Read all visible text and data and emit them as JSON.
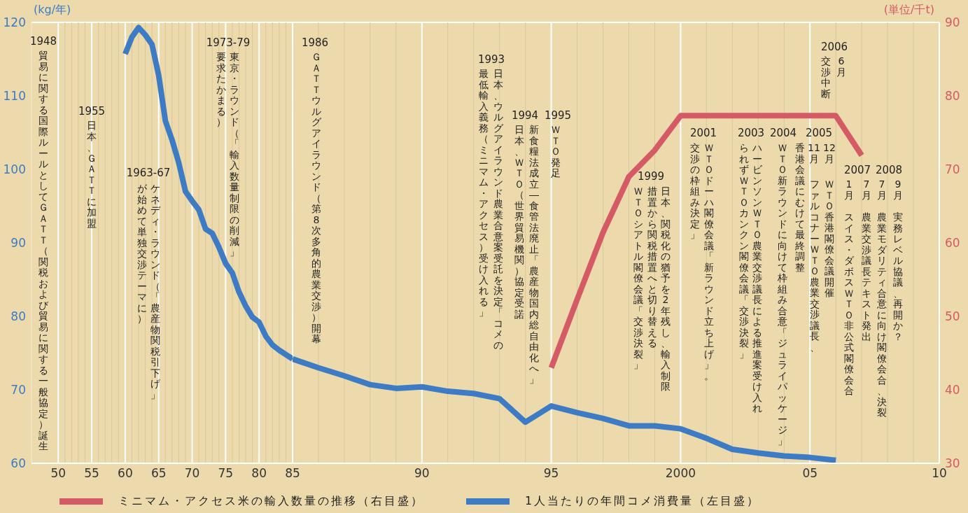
{
  "chart_data": [
    {
      "type": "line",
      "ylabel": "(kg/年)",
      "xlim": [
        1946,
        1985
      ],
      "xticks": [
        {
          "value": 1950,
          "label": "50"
        },
        {
          "value": 1951,
          "label": null
        },
        {
          "value": 1952,
          "label": null
        },
        {
          "value": 1953,
          "label": null
        },
        {
          "value": 1954,
          "label": null
        },
        {
          "value": 1955,
          "label": "55"
        },
        {
          "value": 1956,
          "label": null
        },
        {
          "value": 1957,
          "label": null
        },
        {
          "value": 1958,
          "label": null
        },
        {
          "value": 1959,
          "label": null
        },
        {
          "value": 1960,
          "label": "60"
        },
        {
          "value": 1961,
          "label": null
        },
        {
          "value": 1962,
          "label": null
        },
        {
          "value": 1963,
          "label": null
        },
        {
          "value": 1964,
          "label": null
        },
        {
          "value": 1965,
          "label": "65"
        },
        {
          "value": 1966,
          "label": null
        },
        {
          "value": 1967,
          "label": null
        },
        {
          "value": 1968,
          "label": null
        },
        {
          "value": 1969,
          "label": null
        },
        {
          "value": 1970,
          "label": "70"
        },
        {
          "value": 1971,
          "label": null
        },
        {
          "value": 1972,
          "label": null
        },
        {
          "value": 1973,
          "label": null
        },
        {
          "value": 1974,
          "label": null
        },
        {
          "value": 1975,
          "label": "75"
        },
        {
          "value": 1976,
          "label": null
        },
        {
          "value": 1977,
          "label": null
        },
        {
          "value": 1978,
          "label": null
        },
        {
          "value": 1979,
          "label": null
        },
        {
          "value": 1980,
          "label": "80"
        },
        {
          "value": 1981,
          "label": null
        },
        {
          "value": 1982,
          "label": null
        },
        {
          "value": 1983,
          "label": null
        },
        {
          "value": 1984,
          "label": null
        },
        {
          "value": 1985,
          "label": "85"
        }
      ],
      "ylim": [
        60,
        120
      ],
      "yticks": [
        60,
        70,
        80,
        90,
        100,
        110,
        120
      ],
      "grid": "x",
      "series": [
        {
          "color": "#3d7cc4",
          "x": [
            1960,
            1961,
            1962,
            1963,
            1964,
            1965,
            1966,
            1967,
            1968,
            1969,
            1970,
            1971,
            1972,
            1973,
            1974,
            1975,
            1976,
            1977,
            1978,
            1979,
            1980,
            1981,
            1982,
            1983,
            1984,
            1985
          ],
          "values": [
            115.7,
            118.0,
            119.3,
            118.3,
            117.0,
            112.8,
            106.6,
            104.0,
            100.9,
            97.0,
            95.7,
            94.5,
            91.9,
            91.3,
            89.4,
            87.2,
            85.9,
            83.3,
            81.4,
            79.9,
            79.2,
            77.3,
            76.1,
            75.4,
            74.8,
            74.2
          ]
        }
      ],
      "annotations": [
        "1948",
        "貿易に関する国際ルールとしてＧＡＴＴ（関税および貿易に関する一般協定）誕生",
        "1955",
        "日本、ＧＡＴＴに加盟",
        "1963-67",
        "ケネディ・ラウンド（「農産物関税引下げ」",
        "が始めて単独交渉テーマに）",
        "1973-79",
        "東京・ラウンド（「輸入数量制限の削減」",
        "要求たかまる）"
      ]
    },
    {
      "type": "line",
      "y2label": "(単位/千t)",
      "xlim": [
        1985,
        2010
      ],
      "xticks": [
        {
          "value": 1986,
          "label": null
        },
        {
          "value": 1987,
          "label": null
        },
        {
          "value": 1988,
          "label": null
        },
        {
          "value": 1989,
          "label": null
        },
        {
          "value": 1990,
          "label": "90"
        },
        {
          "value": 1991,
          "label": null
        },
        {
          "value": 1992,
          "label": null
        },
        {
          "value": 1993,
          "label": null
        },
        {
          "value": 1994,
          "label": null
        },
        {
          "value": 1995,
          "label": "95"
        },
        {
          "value": 1996,
          "label": null
        },
        {
          "value": 1997,
          "label": null
        },
        {
          "value": 1998,
          "label": null
        },
        {
          "value": 1999,
          "label": null
        },
        {
          "value": 2000,
          "label": "2000"
        },
        {
          "value": 2001,
          "label": null
        },
        {
          "value": 2002,
          "label": null
        },
        {
          "value": 2003,
          "label": null
        },
        {
          "value": 2004,
          "label": null
        },
        {
          "value": 2005,
          "label": "05"
        },
        {
          "value": 2006,
          "label": null
        },
        {
          "value": 2007,
          "label": null
        },
        {
          "value": 2008,
          "label": null
        },
        {
          "value": 2009,
          "label": null
        },
        {
          "value": 2010,
          "label": "10"
        }
      ],
      "ylim": [
        60,
        120
      ],
      "y2lim": [
        30,
        90
      ],
      "y2ticks": [
        30,
        40,
        50,
        60,
        70,
        80,
        90
      ],
      "tick_labels": [
        "x",
        "y2"
      ],
      "grid": "x",
      "legend": "bottom",
      "series": [
        {
          "name": "ミニマム・アクセス米の輸入数量の推移（右目盛）",
          "color": "#d45a66",
          "axis": "y2",
          "x": [
            1995,
            1996,
            1997,
            1998,
            1999,
            2000,
            2001,
            2002,
            2003,
            2004,
            2005,
            2006,
            2007
          ],
          "values": [
            43.0,
            52.3,
            61.4,
            69.0,
            72.6,
            77.3,
            77.3,
            77.3,
            77.3,
            77.3,
            77.3,
            77.3,
            71.9
          ]
        },
        {
          "name": "1人当たりの年間コメ消費量（左目盛）",
          "color": "#3d7cc4",
          "x": [
            1985,
            1986,
            1987,
            1988,
            1989,
            1990,
            1991,
            1992,
            1993,
            1994,
            1995,
            1996,
            1997,
            1998,
            1999,
            2000,
            2001,
            2002,
            2003,
            2004,
            2005,
            2006
          ],
          "values": [
            74.2,
            73.0,
            71.9,
            70.7,
            70.2,
            70.4,
            69.8,
            69.5,
            68.8,
            65.6,
            67.8,
            66.9,
            66.1,
            65.1,
            65.1,
            64.7,
            63.4,
            61.9,
            61.4,
            61.0,
            60.8,
            60.4
          ]
        }
      ],
      "annotations": [
        "1986",
        "ＧＡＴＴウルグアイラウンド（第8次多角的農業交渉）開幕",
        "1993",
        "日本、ウルグアイラウンド農業合意案受託を決定「コメの",
        "最低輸入義務（ミニマム・アクセス）受け入れる」",
        "1994",
        "新食糧法成立―食管法廃止「農産物国内総自由化へ」",
        "日本、ＷＴＯ（世界貿易機関）協定受諾",
        "1995",
        "ＷＴＯ発足",
        "1999",
        "日本、関税化の猶予を2年残し、輸入制限",
        "措置から関税措置へと切り替える",
        "ＷＴＯシアトル閣僚会議「交渉決裂」",
        "2001",
        "ＷＴＯドーハ閣僚会議「新ラウンド立ち上げ」。",
        "交渉の枠組み決定」",
        "2003",
        "ハービンソンＷＴＯ農業交渉議長による推進案受け入れ",
        "られずＷＴＯカンクン閣僚会議「交渉決裂」",
        "2004",
        "ＷＴＯ新ラウンドに向けて枠組み合意「ジュライパッケージ」",
        "2005",
        "11月",
        "ファルコナーＷＴＯ農業交渉議長、",
        "香港会議にむけて最終調整",
        "12月",
        "ＷＴＯ香港閣僚会議開催",
        "2006",
        "6月",
        "交渉中断",
        "2007",
        "1月",
        "スイス・ダボスＷＴＯ非公式閣僚会合",
        "7月",
        "農業交渉議長テキスト発出",
        "2008",
        "7月",
        "農業モダリティ合意に向け閣僚会合、決裂",
        "9月",
        "実務レベル協議、再開か？"
      ]
    }
  ]
}
